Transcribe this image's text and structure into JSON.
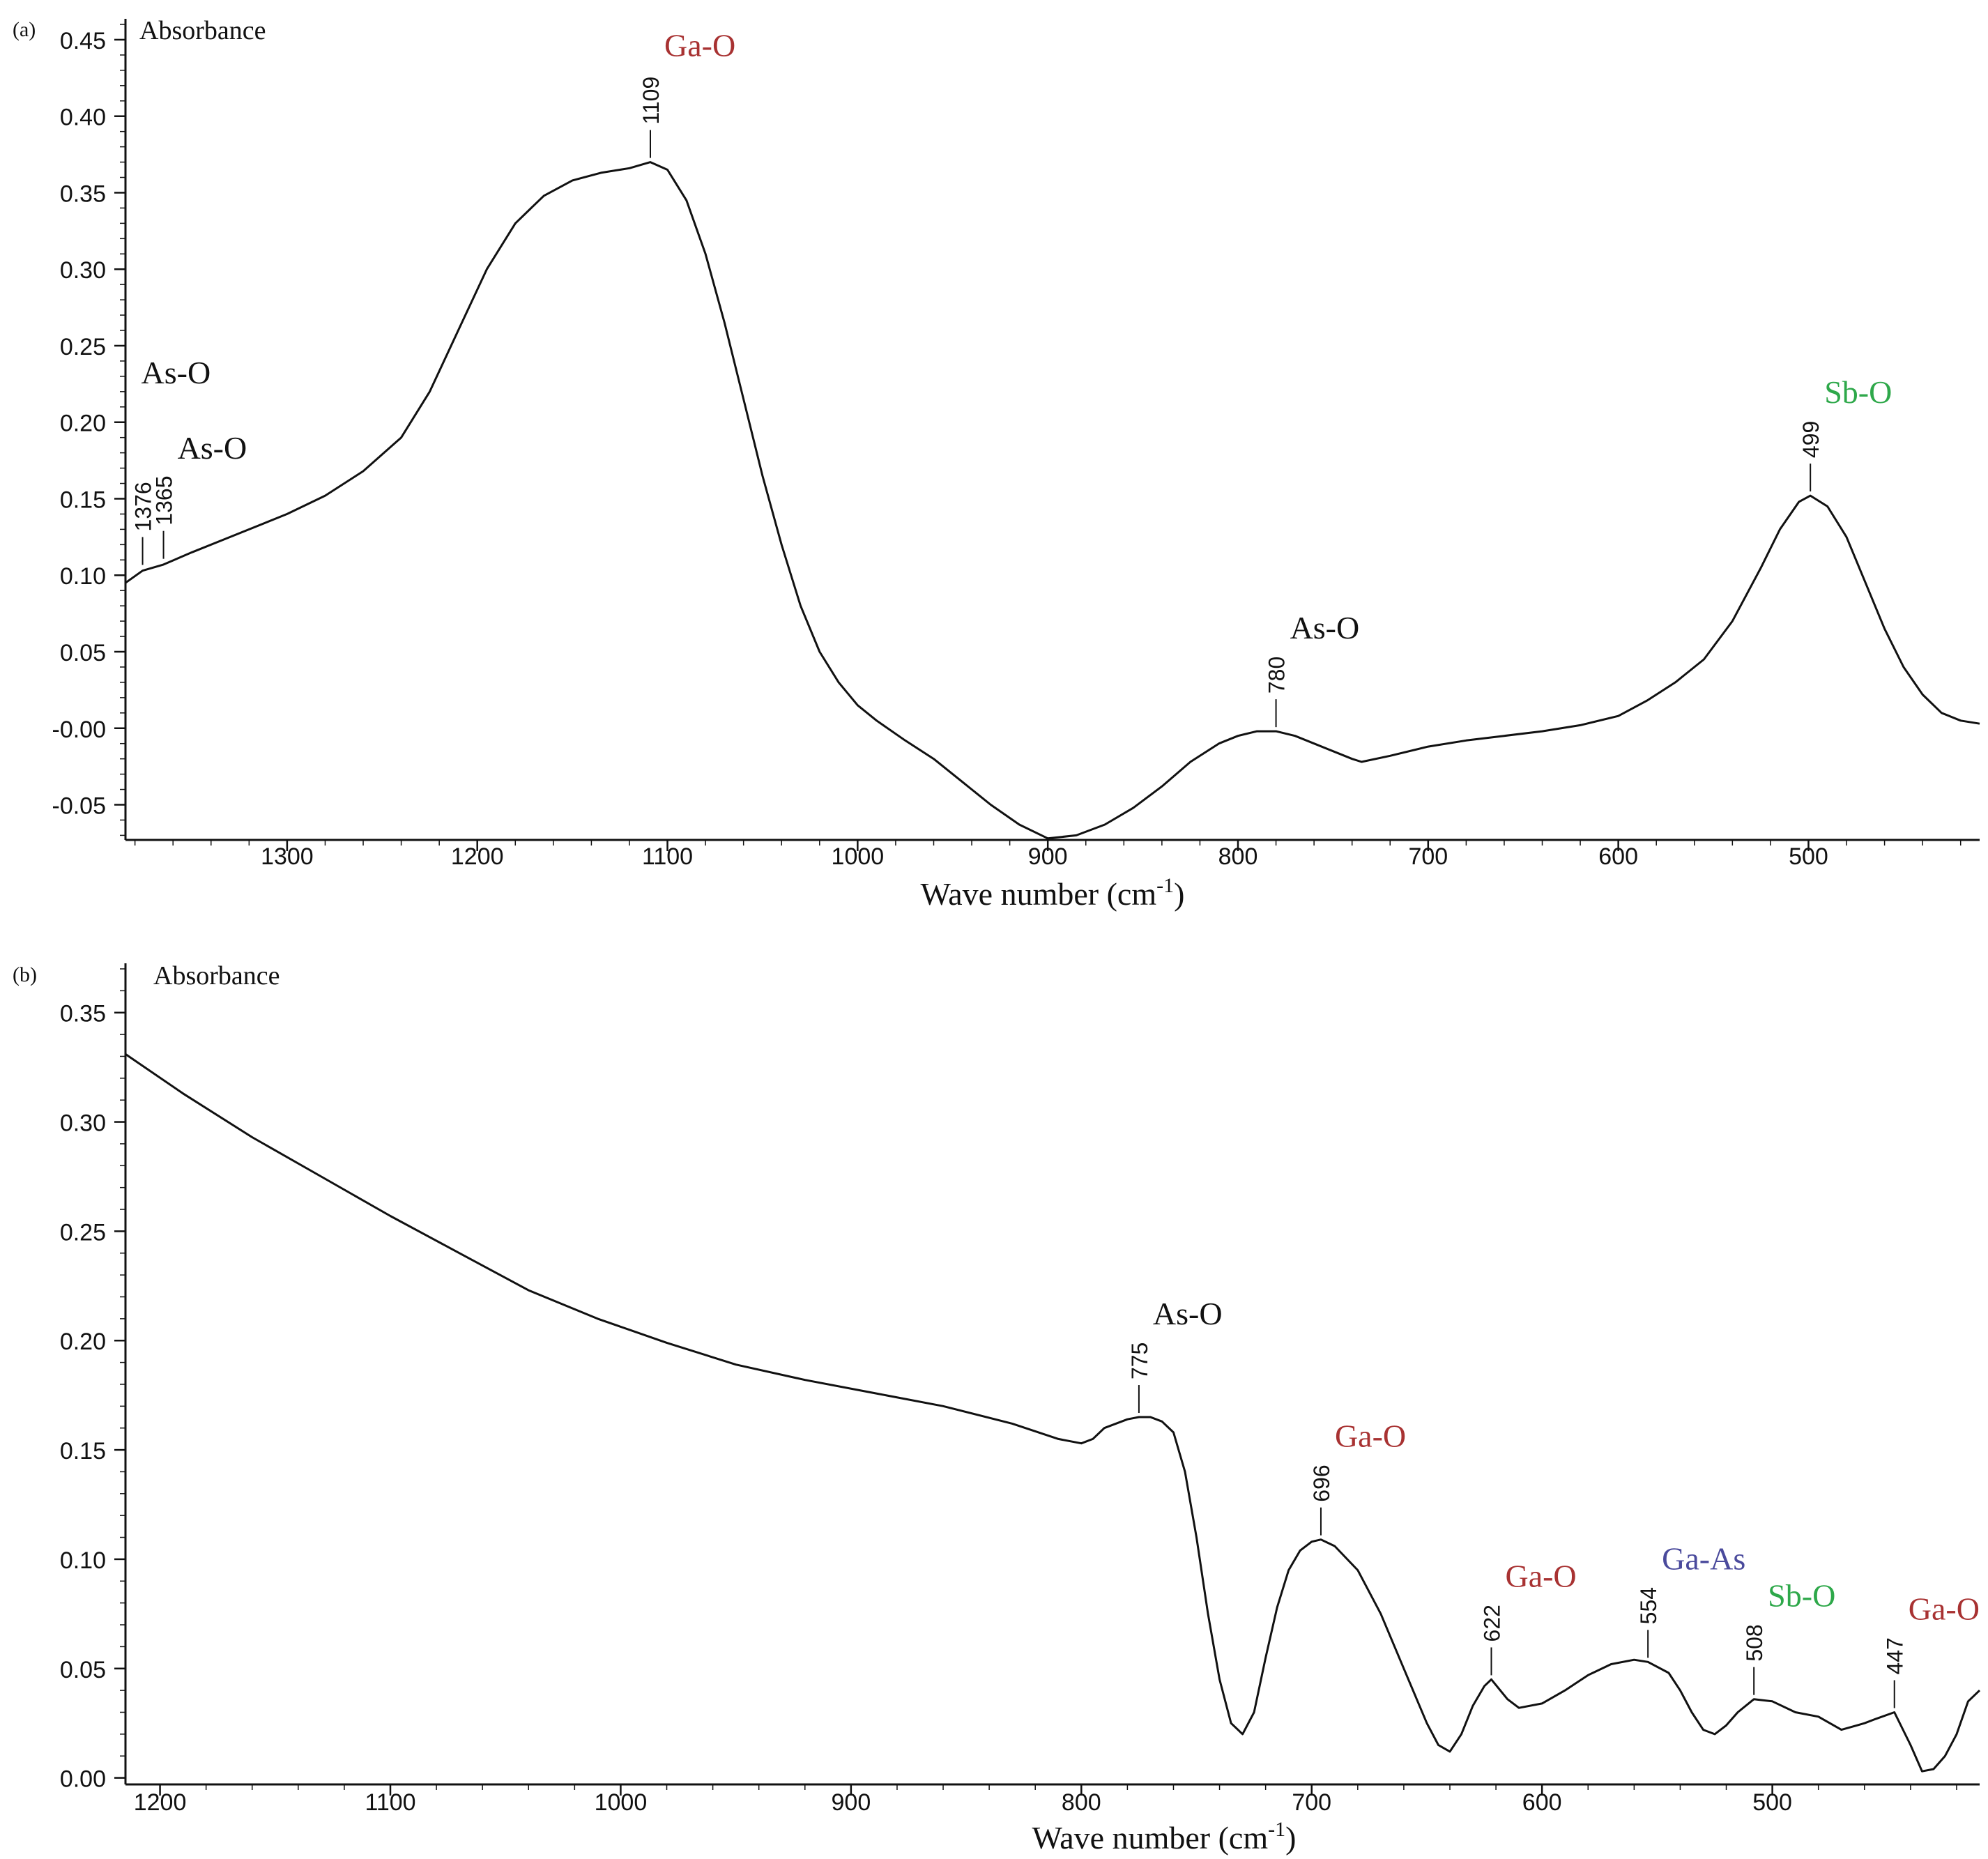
{
  "chart_data": [
    {
      "panel_label": "(a)",
      "type": "line",
      "xlabel": "Wave number (cm",
      "xlabel_sup": "-1",
      "xlabel_close": ")",
      "ylabel": "Absorbance",
      "xlim": [
        1385,
        410
      ],
      "ylim": [
        -0.073,
        0.46
      ],
      "x_ticks": [
        1300,
        1200,
        1100,
        1000,
        900,
        800,
        700,
        600,
        500
      ],
      "x_tick_labels": [
        "1300",
        "1200",
        "1100",
        "1000",
        "900",
        "800",
        "700",
        "600",
        "500"
      ],
      "y_ticks": [
        -0.05,
        0,
        0.05,
        0.1,
        0.15,
        0.2,
        0.25,
        0.3,
        0.35,
        0.4,
        0.45
      ],
      "y_tick_labels": [
        "-0.05",
        "-0.00",
        "0.05",
        "0.10",
        "0.15",
        "0.20",
        "0.25",
        "0.30",
        "0.35",
        "0.40",
        "0.45"
      ],
      "line_color": "#111111",
      "series": [
        {
          "x": [
            1385,
            1376,
            1365,
            1350,
            1330,
            1300,
            1280,
            1260,
            1240,
            1225,
            1210,
            1195,
            1180,
            1165,
            1150,
            1135,
            1120,
            1109,
            1100,
            1090,
            1080,
            1070,
            1060,
            1050,
            1040,
            1030,
            1020,
            1010,
            1000,
            990,
            975,
            960,
            945,
            930,
            915,
            900,
            885,
            870,
            855,
            840,
            825,
            810,
            800,
            790,
            780,
            770,
            760,
            750,
            740,
            735,
            720,
            700,
            680,
            660,
            640,
            620,
            600,
            585,
            570,
            555,
            540,
            525,
            515,
            505,
            499,
            490,
            480,
            470,
            460,
            450,
            440,
            430,
            420,
            410
          ],
          "y": [
            0.095,
            0.103,
            0.107,
            0.115,
            0.125,
            0.14,
            0.152,
            0.168,
            0.19,
            0.22,
            0.26,
            0.3,
            0.33,
            0.348,
            0.358,
            0.363,
            0.366,
            0.37,
            0.365,
            0.345,
            0.31,
            0.265,
            0.215,
            0.165,
            0.12,
            0.08,
            0.05,
            0.03,
            0.015,
            0.005,
            -0.008,
            -0.02,
            -0.035,
            -0.05,
            -0.063,
            -0.072,
            -0.07,
            -0.063,
            -0.052,
            -0.038,
            -0.022,
            -0.01,
            -0.005,
            -0.002,
            -0.002,
            -0.005,
            -0.01,
            -0.015,
            -0.02,
            -0.022,
            -0.018,
            -0.012,
            -0.008,
            -0.005,
            -0.002,
            0.002,
            0.008,
            0.018,
            0.03,
            0.045,
            0.07,
            0.105,
            0.13,
            0.148,
            0.152,
            0.145,
            0.125,
            0.095,
            0.065,
            0.04,
            0.022,
            0.01,
            0.005,
            0.003
          ]
        }
      ],
      "annotations": [
        {
          "x": 1376,
          "y": 0.104,
          "label": "1376",
          "group": "As-O",
          "color": "#111111"
        },
        {
          "x": 1365,
          "y": 0.108,
          "label": "1365",
          "group": "As-O",
          "color": "#111111"
        },
        {
          "x": 1109,
          "y": 0.37,
          "label": "1109",
          "group": "Ga-O",
          "color": "#a83232"
        },
        {
          "x": 780,
          "y": -0.002,
          "label": "780",
          "group": "As-O",
          "color": "#111111"
        },
        {
          "x": 499,
          "y": 0.152,
          "label": "499",
          "group": "Sb-O",
          "color": "#2ea84a"
        }
      ]
    },
    {
      "panel_label": "(b)",
      "type": "line",
      "xlabel": "Wave number (cm",
      "xlabel_sup": "-1",
      "xlabel_close": ")",
      "ylabel": "Absorbance",
      "xlim": [
        1215,
        410
      ],
      "ylim": [
        -0.003,
        0.37
      ],
      "x_ticks": [
        1200,
        1100,
        1000,
        900,
        800,
        700,
        600,
        500
      ],
      "x_tick_labels": [
        "1200",
        "1100",
        "1000",
        "900",
        "800",
        "700",
        "600",
        "500"
      ],
      "y_ticks": [
        0,
        0.05,
        0.1,
        0.15,
        0.2,
        0.25,
        0.3,
        0.35
      ],
      "y_tick_labels": [
        "0.00",
        "0.05",
        "0.10",
        "0.15",
        "0.20",
        "0.25",
        "0.30",
        "0.35"
      ],
      "line_color": "#111111",
      "series": [
        {
          "x": [
            1215,
            1190,
            1160,
            1130,
            1100,
            1070,
            1040,
            1010,
            980,
            950,
            920,
            890,
            860,
            830,
            810,
            800,
            795,
            790,
            780,
            775,
            770,
            765,
            760,
            755,
            750,
            745,
            740,
            735,
            730,
            725,
            720,
            715,
            710,
            705,
            700,
            696,
            690,
            680,
            670,
            660,
            650,
            645,
            640,
            635,
            630,
            625,
            622,
            615,
            610,
            600,
            590,
            580,
            570,
            560,
            554,
            545,
            540,
            535,
            530,
            525,
            520,
            515,
            508,
            500,
            490,
            480,
            470,
            460,
            455,
            447,
            440,
            435,
            430,
            425,
            420,
            415,
            410
          ],
          "y": [
            0.331,
            0.313,
            0.293,
            0.275,
            0.257,
            0.24,
            0.223,
            0.21,
            0.199,
            0.189,
            0.182,
            0.176,
            0.17,
            0.162,
            0.155,
            0.153,
            0.155,
            0.16,
            0.164,
            0.165,
            0.165,
            0.163,
            0.158,
            0.14,
            0.11,
            0.075,
            0.045,
            0.025,
            0.02,
            0.03,
            0.055,
            0.078,
            0.095,
            0.104,
            0.108,
            0.109,
            0.106,
            0.095,
            0.075,
            0.05,
            0.025,
            0.015,
            0.012,
            0.02,
            0.033,
            0.042,
            0.045,
            0.036,
            0.032,
            0.034,
            0.04,
            0.047,
            0.052,
            0.054,
            0.053,
            0.048,
            0.04,
            0.03,
            0.022,
            0.02,
            0.024,
            0.03,
            0.036,
            0.035,
            0.03,
            0.028,
            0.022,
            0.025,
            0.027,
            0.03,
            0.015,
            0.003,
            0.004,
            0.01,
            0.02,
            0.035,
            0.04
          ]
        }
      ],
      "annotations": [
        {
          "x": 775,
          "y": 0.165,
          "label": "775",
          "group": "As-O",
          "color": "#111111"
        },
        {
          "x": 696,
          "y": 0.109,
          "label": "696",
          "group": "Ga-O",
          "color": "#a83232"
        },
        {
          "x": 622,
          "y": 0.045,
          "label": "622",
          "group": "Ga-O",
          "color": "#a83232"
        },
        {
          "x": 554,
          "y": 0.053,
          "label": "554",
          "group": "Ga-As",
          "color": "#4a4a9c"
        },
        {
          "x": 508,
          "y": 0.036,
          "label": "508",
          "group": "Sb-O",
          "color": "#2ea84a"
        },
        {
          "x": 447,
          "y": 0.03,
          "label": "447",
          "group": "Ga-O",
          "color": "#a83232"
        }
      ]
    }
  ]
}
